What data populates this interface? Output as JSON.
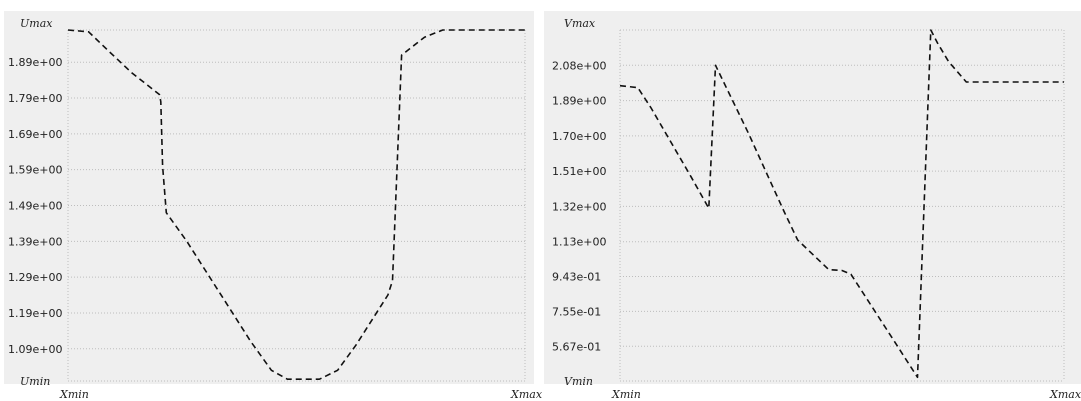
{
  "colors": {
    "background": "#efefef",
    "grid": "#bdbdbd",
    "curve": "#111111",
    "frame": "#ffffff"
  },
  "chart_data": [
    {
      "type": "line",
      "series_style": "dashed",
      "grid": true,
      "ymax_label": "Umax",
      "ymin_label": "Umin",
      "xmin_label": "Xmin",
      "xmax_label": "Xmax",
      "ylim": [
        1.0,
        1.98
      ],
      "xlim": [
        0,
        1
      ],
      "y_ticks": [
        "1.89e+00",
        "1.79e+00",
        "1.69e+00",
        "1.59e+00",
        "1.49e+00",
        "1.39e+00",
        "1.29e+00",
        "1.19e+00",
        "1.09e+00"
      ],
      "y_tick_values": [
        1.89,
        1.79,
        1.69,
        1.59,
        1.49,
        1.39,
        1.29,
        1.19,
        1.09
      ],
      "x": [
        0.0,
        0.045,
        0.09,
        0.14,
        0.2,
        0.203,
        0.207,
        0.215,
        0.26,
        0.3,
        0.34,
        0.4,
        0.445,
        0.48,
        0.55,
        0.59,
        0.63,
        0.7,
        0.71,
        0.73,
        0.78,
        0.82,
        1.0
      ],
      "y": [
        1.98,
        1.975,
        1.92,
        1.86,
        1.8,
        1.78,
        1.6,
        1.47,
        1.39,
        1.31,
        1.23,
        1.11,
        1.03,
        1.005,
        1.005,
        1.03,
        1.1,
        1.24,
        1.28,
        1.91,
        1.96,
        1.98,
        1.98
      ]
    },
    {
      "type": "line",
      "series_style": "dashed",
      "grid": true,
      "ymax_label": "Vmax",
      "ymin_label": "Vmin",
      "xmin_label": "Xmin",
      "xmax_label": "Xmax",
      "ylim": [
        0.38,
        2.27
      ],
      "xlim": [
        0,
        1
      ],
      "y_ticks": [
        "2.08e+00",
        "1.89e+00",
        "1.70e+00",
        "1.51e+00",
        "1.32e+00",
        "1.13e+00",
        "9.43e-01",
        "7.55e-01",
        "5.67e-01"
      ],
      "y_tick_values": [
        2.08,
        1.89,
        1.7,
        1.51,
        1.32,
        1.13,
        0.943,
        0.755,
        0.567
      ],
      "x": [
        0.0,
        0.04,
        0.07,
        0.16,
        0.2,
        0.215,
        0.29,
        0.33,
        0.37,
        0.4,
        0.47,
        0.5,
        0.52,
        0.6,
        0.67,
        0.7,
        0.715,
        0.74,
        0.78,
        1.0
      ],
      "y": [
        1.97,
        1.96,
        1.85,
        1.48,
        1.31,
        2.08,
        1.71,
        1.5,
        1.29,
        1.14,
        0.98,
        0.975,
        0.955,
        0.66,
        0.4,
        2.27,
        2.2,
        2.1,
        1.99,
        1.99
      ]
    }
  ]
}
